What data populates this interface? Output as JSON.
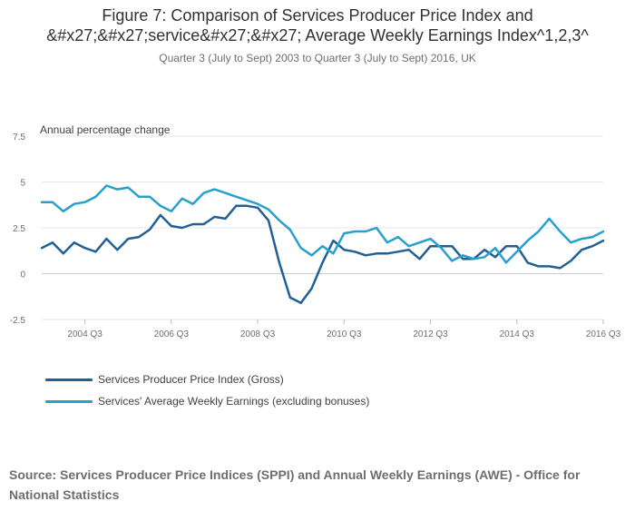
{
  "title_line1": "Figure 7: Comparison of Services Producer Price Index and",
  "title_line2": "&#x27;&#x27;service&#x27;&#x27; Average Weekly Earnings Index^1,2,3^",
  "subtitle": "Quarter 3 (July to Sept) 2003 to Quarter 3 (July to Sept) 2016, UK",
  "source": "Source: Services Producer Price Indices (SPPI) and Annual Weekly Earnings (AWE) - Office for National Statistics",
  "colors": {
    "sppi": "#206095",
    "awe": "#27a0cc",
    "grid": "#e6e6e6",
    "axis_text": "#6d6e71"
  },
  "chart_data": {
    "type": "line",
    "title": "Figure 7: Comparison of Services Producer Price Index and &#x27;&#x27;service&#x27;&#x27; Average Weekly Earnings Index^1,2,3^",
    "subtitle": "Quarter 3 (July to Sept) 2003 to Quarter 3 (July to Sept) 2016, UK",
    "ylabel": "Annual percentage change",
    "xlabel": "",
    "ylim": [
      -2.5,
      7.5
    ],
    "yticks": [
      -2.5,
      0,
      2.5,
      5,
      7.5
    ],
    "ytick_labels": [
      "-2.5",
      "0",
      "2.5",
      "5",
      "7.5"
    ],
    "xticks": [
      {
        "index": 4,
        "label": "2004 Q3"
      },
      {
        "index": 12,
        "label": "2006 Q3"
      },
      {
        "index": 20,
        "label": "2008 Q3"
      },
      {
        "index": 28,
        "label": "2010 Q3"
      },
      {
        "index": 36,
        "label": "2012 Q3"
      },
      {
        "index": 44,
        "label": "2014 Q3"
      },
      {
        "index": 52,
        "label": "2016 Q3"
      }
    ],
    "grid": true,
    "legend_position": "bottom-left",
    "categories": [
      "2003 Q3",
      "2003 Q4",
      "2004 Q1",
      "2004 Q2",
      "2004 Q3",
      "2004 Q4",
      "2005 Q1",
      "2005 Q2",
      "2005 Q3",
      "2005 Q4",
      "2006 Q1",
      "2006 Q2",
      "2006 Q3",
      "2006 Q4",
      "2007 Q1",
      "2007 Q2",
      "2007 Q3",
      "2007 Q4",
      "2008 Q1",
      "2008 Q2",
      "2008 Q3",
      "2008 Q4",
      "2009 Q1",
      "2009 Q2",
      "2009 Q3",
      "2009 Q4",
      "2010 Q1",
      "2010 Q2",
      "2010 Q3",
      "2010 Q4",
      "2011 Q1",
      "2011 Q2",
      "2011 Q3",
      "2011 Q4",
      "2012 Q1",
      "2012 Q2",
      "2012 Q3",
      "2012 Q4",
      "2013 Q1",
      "2013 Q2",
      "2013 Q3",
      "2013 Q4",
      "2014 Q1",
      "2014 Q2",
      "2014 Q3",
      "2014 Q4",
      "2015 Q1",
      "2015 Q2",
      "2015 Q3",
      "2015 Q4",
      "2016 Q1",
      "2016 Q2",
      "2016 Q3"
    ],
    "series": [
      {
        "name": "Services Producer Price Index (Gross)",
        "color": "#206095",
        "values": [
          1.4,
          1.7,
          1.1,
          1.7,
          1.4,
          1.2,
          1.9,
          1.3,
          1.9,
          2.0,
          2.4,
          3.2,
          2.6,
          2.5,
          2.7,
          2.7,
          3.1,
          3.0,
          3.7,
          3.7,
          3.6,
          2.9,
          0.6,
          -1.3,
          -1.6,
          -0.8,
          0.6,
          1.8,
          1.3,
          1.2,
          1.0,
          1.1,
          1.1,
          1.2,
          1.3,
          0.8,
          1.5,
          1.5,
          1.5,
          0.8,
          0.8,
          1.3,
          0.9,
          1.5,
          1.5,
          0.6,
          0.4,
          0.4,
          0.3,
          0.7,
          1.3,
          1.5,
          1.8
        ]
      },
      {
        "name": "Services' Average Weekly Earnings (excluding bonuses)",
        "color": "#27a0cc",
        "values": [
          3.9,
          3.9,
          3.4,
          3.8,
          3.9,
          4.2,
          4.8,
          4.6,
          4.7,
          4.2,
          4.2,
          3.7,
          3.4,
          4.1,
          3.8,
          4.4,
          4.6,
          4.4,
          4.2,
          4.0,
          3.8,
          3.5,
          2.9,
          2.4,
          1.4,
          1.0,
          1.5,
          1.1,
          2.2,
          2.3,
          2.3,
          2.5,
          1.7,
          2.0,
          1.5,
          1.7,
          1.9,
          1.4,
          0.7,
          1.0,
          0.8,
          0.9,
          1.4,
          0.6,
          1.2,
          1.8,
          2.3,
          3.0,
          2.3,
          1.7,
          1.9,
          2.0,
          2.3
        ]
      }
    ]
  }
}
